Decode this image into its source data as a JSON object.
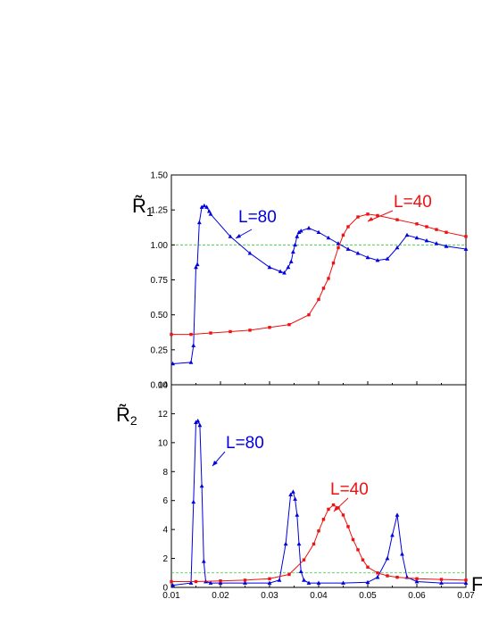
{
  "chart_data": [
    {
      "type": "line",
      "panel": "top",
      "ylabel": "R̃",
      "ylabel_sub": "1",
      "xlim": [
        0.01,
        0.07
      ],
      "ylim": [
        0,
        1.5
      ],
      "yticks": [
        "0.00",
        "0.25",
        "0.50",
        "0.75",
        "1.00",
        "1.25",
        "1.50"
      ],
      "ytick_values": [
        0,
        0.25,
        0.5,
        0.75,
        1.0,
        1.25,
        1.5
      ],
      "reference_line": 1.0,
      "series": [
        {
          "name": "L=80",
          "color": "#0000dd",
          "marker": "triangle",
          "x": [
            0.0103,
            0.014,
            0.0145,
            0.015,
            0.0153,
            0.0157,
            0.0162,
            0.0167,
            0.0172,
            0.0177,
            0.018,
            0.022,
            0.026,
            0.03,
            0.0322,
            0.033,
            0.0338,
            0.0344,
            0.0348,
            0.0352,
            0.0356,
            0.036,
            0.0364,
            0.038,
            0.04,
            0.042,
            0.044,
            0.046,
            0.048,
            0.05,
            0.052,
            0.054,
            0.056,
            0.058,
            0.06,
            0.062,
            0.064,
            0.066,
            0.07
          ],
          "y": [
            0.15,
            0.16,
            0.28,
            0.84,
            0.86,
            1.16,
            1.27,
            1.28,
            1.27,
            1.24,
            1.22,
            1.06,
            0.94,
            0.84,
            0.81,
            0.8,
            0.84,
            0.88,
            0.95,
            1.0,
            1.06,
            1.09,
            1.1,
            1.12,
            1.09,
            1.05,
            1.01,
            0.97,
            0.94,
            0.91,
            0.89,
            0.9,
            0.98,
            1.07,
            1.05,
            1.03,
            1.01,
            0.99,
            0.97
          ]
        },
        {
          "name": "L=40",
          "color": "#ee1111",
          "marker": "square",
          "x": [
            0.01,
            0.014,
            0.018,
            0.022,
            0.026,
            0.03,
            0.034,
            0.038,
            0.04,
            0.041,
            0.042,
            0.043,
            0.044,
            0.045,
            0.046,
            0.048,
            0.05,
            0.052,
            0.056,
            0.06,
            0.062,
            0.064,
            0.066,
            0.07
          ],
          "y": [
            0.36,
            0.36,
            0.37,
            0.38,
            0.39,
            0.41,
            0.43,
            0.5,
            0.61,
            0.69,
            0.76,
            0.87,
            0.98,
            1.07,
            1.13,
            1.2,
            1.22,
            1.21,
            1.18,
            1.15,
            1.13,
            1.11,
            1.09,
            1.06
          ]
        }
      ],
      "annotations": [
        {
          "text": "L=80",
          "color": "#0000dd"
        },
        {
          "text": "L=40",
          "color": "#ee1111"
        }
      ]
    },
    {
      "type": "line",
      "panel": "bottom",
      "ylabel": "R̃",
      "ylabel_sub": "2",
      "xlabel": "F",
      "xlim": [
        0.01,
        0.07
      ],
      "ylim": [
        0,
        14
      ],
      "xticks": [
        "0.01",
        "0.02",
        "0.03",
        "0.04",
        "0.05",
        "0.06",
        "0.07"
      ],
      "xtick_values": [
        0.01,
        0.02,
        0.03,
        0.04,
        0.05,
        0.06,
        0.07
      ],
      "yticks": [
        "0",
        "2",
        "4",
        "6",
        "8",
        "10",
        "12",
        "14"
      ],
      "ytick_values": [
        0,
        2,
        4,
        6,
        8,
        10,
        12,
        14
      ],
      "reference_line": 1.0,
      "series": [
        {
          "name": "L=80",
          "color": "#0000dd",
          "marker": "triangle",
          "x": [
            0.0103,
            0.014,
            0.0145,
            0.015,
            0.0154,
            0.0158,
            0.0162,
            0.0166,
            0.017,
            0.018,
            0.02,
            0.025,
            0.03,
            0.032,
            0.0333,
            0.0343,
            0.0348,
            0.0352,
            0.0356,
            0.036,
            0.0364,
            0.037,
            0.038,
            0.04,
            0.045,
            0.05,
            0.052,
            0.054,
            0.055,
            0.056,
            0.057,
            0.058,
            0.06,
            0.065,
            0.07
          ],
          "y": [
            0.15,
            0.3,
            5.9,
            11.4,
            11.5,
            11.2,
            7.0,
            1.8,
            0.4,
            0.3,
            0.3,
            0.3,
            0.3,
            0.5,
            3.0,
            6.4,
            6.6,
            6.1,
            5.0,
            3.0,
            1.1,
            0.5,
            0.3,
            0.3,
            0.3,
            0.35,
            0.7,
            2.0,
            3.6,
            5.0,
            2.3,
            0.7,
            0.4,
            0.3,
            0.3
          ]
        },
        {
          "name": "L=40",
          "color": "#ee1111",
          "marker": "square",
          "x": [
            0.01,
            0.015,
            0.02,
            0.025,
            0.03,
            0.034,
            0.037,
            0.039,
            0.04,
            0.041,
            0.042,
            0.043,
            0.044,
            0.045,
            0.046,
            0.047,
            0.048,
            0.049,
            0.05,
            0.052,
            0.054,
            0.056,
            0.06,
            0.065,
            0.07
          ],
          "y": [
            0.4,
            0.4,
            0.45,
            0.5,
            0.6,
            0.9,
            1.9,
            3.0,
            3.9,
            4.7,
            5.4,
            5.7,
            5.5,
            5.0,
            4.2,
            3.3,
            2.6,
            1.9,
            1.4,
            1.0,
            0.8,
            0.7,
            0.6,
            0.55,
            0.5
          ]
        }
      ],
      "annotations": [
        {
          "text": "L=80",
          "color": "#0000dd"
        },
        {
          "text": "L=40",
          "color": "#ee1111"
        }
      ]
    }
  ]
}
